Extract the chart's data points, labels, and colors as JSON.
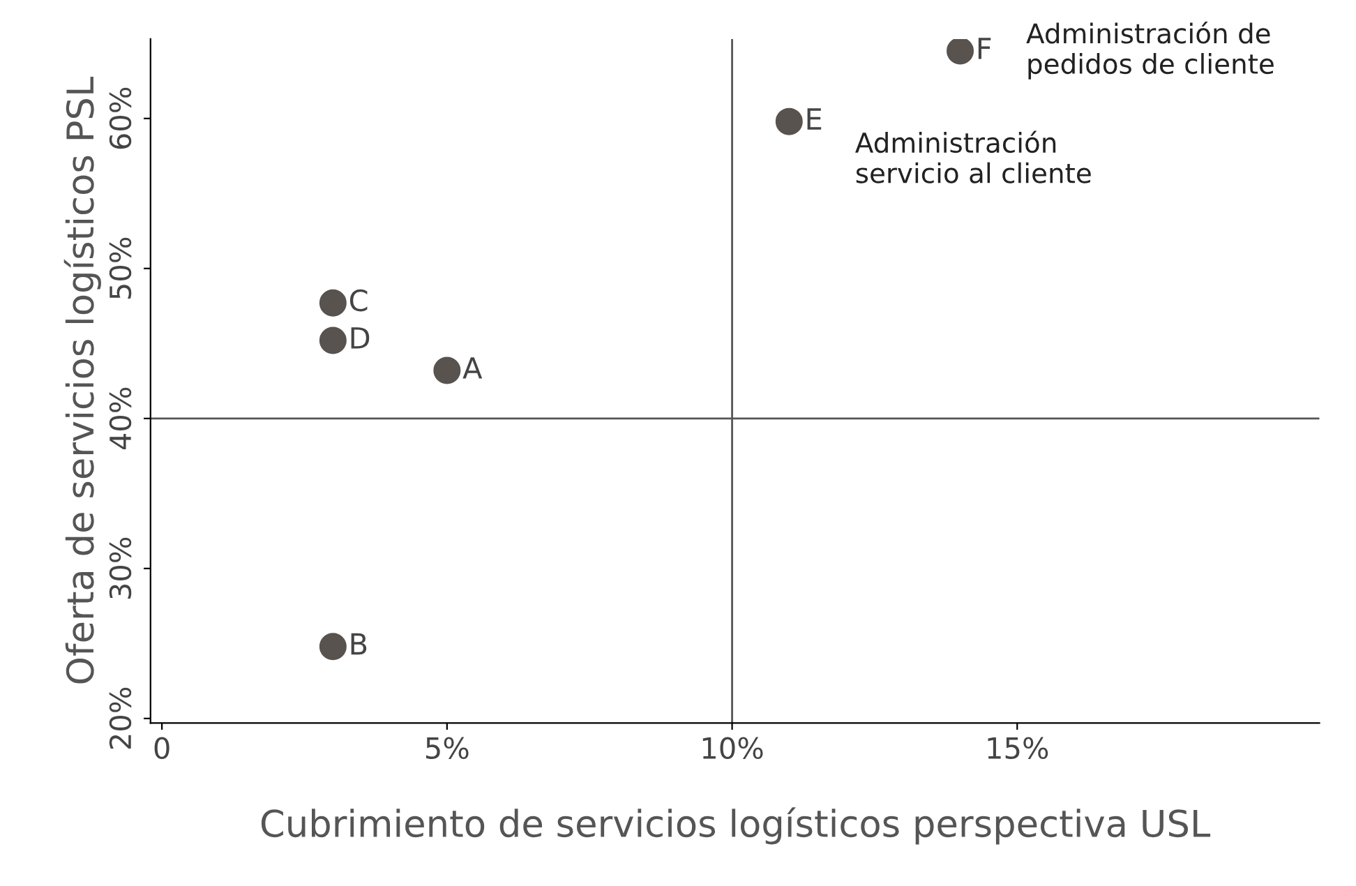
{
  "chart_data": {
    "type": "scatter",
    "xlabel": "Cubrimiento de servicios logísticos perspectiva USL",
    "ylabel": "Oferta de servicios logísticos PSL",
    "x": [
      5,
      3,
      3,
      3,
      11,
      14
    ],
    "series": [
      {
        "color": "#58534f",
        "values": [
          43.2,
          24.8,
          47.7,
          45.2,
          59.8,
          64.5
        ]
      }
    ],
    "marker": "circle",
    "grid": false,
    "legend": false,
    "xlim": [
      -0.2,
      20.3
    ],
    "ylim": [
      19.7,
      65.3
    ],
    "xticks": [
      0,
      {
        "value": 5,
        "label": "5%"
      },
      {
        "value": 10,
        "label": "10%"
      },
      {
        "value": 15,
        "label": "15%"
      }
    ],
    "yticks": [
      {
        "value": 20,
        "label": "20%"
      },
      {
        "value": 30,
        "label": "30%"
      },
      {
        "value": 40,
        "label": "40%"
      },
      {
        "value": 50,
        "label": "50%"
      },
      {
        "value": 60,
        "label": "60%"
      }
    ],
    "ref_lines": [
      {
        "axis": "x",
        "value": 10,
        "color": "#555555"
      },
      {
        "axis": "y",
        "value": 40,
        "color": "#555555"
      }
    ],
    "annotations": [
      {
        "text": "A",
        "x": 5,
        "y": 43.2
      },
      {
        "text": "B",
        "x": 3,
        "y": 24.8
      },
      {
        "text": "C",
        "x": 3,
        "y": 47.7
      },
      {
        "text": "D",
        "x": 3,
        "y": 45.2
      },
      {
        "text": "E",
        "x": 11,
        "y": 59.8
      },
      {
        "text": "F",
        "x": 14,
        "y": 64.5
      },
      {
        "text": "Administración\nservicio al cliente",
        "x": 11,
        "y": 59.8
      },
      {
        "text": "Administración de\npedidos de cliente",
        "x": 14,
        "y": 64.5
      }
    ]
  }
}
